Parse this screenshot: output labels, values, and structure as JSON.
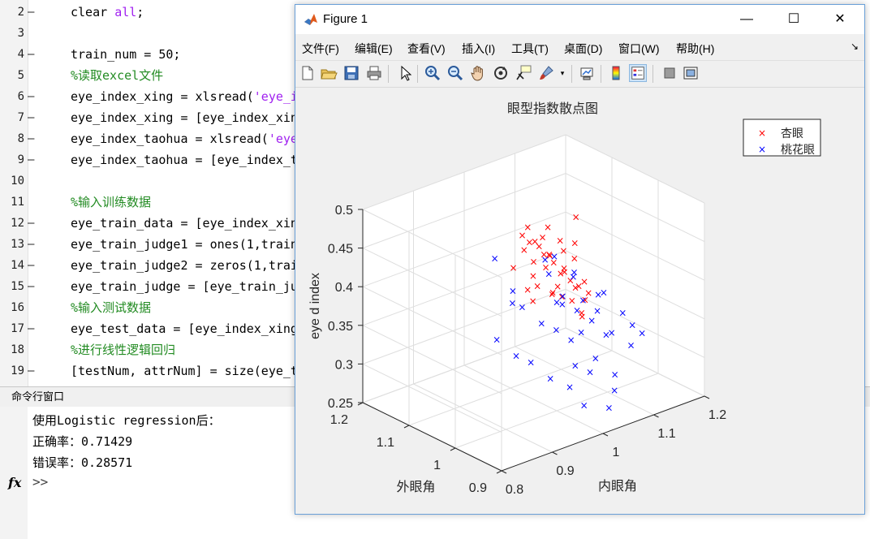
{
  "editor": {
    "lines": [
      {
        "num": "2",
        "dash": "—",
        "parts": [
          {
            "t": "clear ",
            "c": "kw"
          },
          {
            "t": "all",
            "c": "str"
          },
          {
            "t": ";",
            "c": "kw"
          }
        ]
      },
      {
        "num": "3",
        "dash": "",
        "parts": []
      },
      {
        "num": "4",
        "dash": "—",
        "parts": [
          {
            "t": "train_num = 50;",
            "c": "kw"
          }
        ]
      },
      {
        "num": "5",
        "dash": "",
        "parts": [
          {
            "t": "%读取excel文件",
            "c": "cm"
          }
        ]
      },
      {
        "num": "6",
        "dash": "—",
        "parts": [
          {
            "t": "eye_index_xing = xlsread(",
            "c": "kw"
          },
          {
            "t": "'eye_i",
            "c": "str"
          }
        ]
      },
      {
        "num": "7",
        "dash": "—",
        "parts": [
          {
            "t": "eye_index_xing = [eye_index_xin",
            "c": "kw"
          }
        ]
      },
      {
        "num": "8",
        "dash": "—",
        "parts": [
          {
            "t": "eye_index_taohua = xlsread(",
            "c": "kw"
          },
          {
            "t": "'eye",
            "c": "str"
          }
        ]
      },
      {
        "num": "9",
        "dash": "—",
        "parts": [
          {
            "t": "eye_index_taohua = [eye_index_t",
            "c": "kw"
          }
        ]
      },
      {
        "num": "10",
        "dash": "",
        "parts": []
      },
      {
        "num": "11",
        "dash": "",
        "parts": [
          {
            "t": "%输入训练数据",
            "c": "cm"
          }
        ]
      },
      {
        "num": "12",
        "dash": "—",
        "parts": [
          {
            "t": "eye_train_data = [eye_index_xin",
            "c": "kw"
          }
        ]
      },
      {
        "num": "13",
        "dash": "—",
        "parts": [
          {
            "t": "eye_train_judge1 = ones(1,train",
            "c": "kw"
          }
        ]
      },
      {
        "num": "14",
        "dash": "—",
        "parts": [
          {
            "t": "eye_train_judge2 = zeros(1,trai",
            "c": "kw"
          }
        ]
      },
      {
        "num": "15",
        "dash": "—",
        "parts": [
          {
            "t": "eye_train_judge = [eye_train_ju",
            "c": "kw"
          }
        ]
      },
      {
        "num": "16",
        "dash": "",
        "parts": [
          {
            "t": "%输入测试数据",
            "c": "cm"
          }
        ]
      },
      {
        "num": "17",
        "dash": "—",
        "parts": [
          {
            "t": "eye_test_data = [eye_index_xing",
            "c": "kw"
          }
        ]
      },
      {
        "num": "18",
        "dash": "",
        "parts": [
          {
            "t": "%进行线性逻辑回归",
            "c": "cm"
          }
        ]
      },
      {
        "num": "19",
        "dash": "—",
        "parts": [
          {
            "t": "[testNum, attrNum] = size(eye_t",
            "c": "kw"
          }
        ]
      }
    ]
  },
  "command_window": {
    "header": "命令行窗口",
    "lines": [
      "使用Logistic regression后：",
      "正确率：0.71429",
      "错误率：0.28571"
    ],
    "fx": "fx",
    "prompt": ">>"
  },
  "figure": {
    "title": "Figure 1",
    "controls": {
      "minimize": "—",
      "maximize": "☐",
      "close": "✕"
    },
    "menu": [
      "文件(F)",
      "编辑(E)",
      "查看(V)",
      "插入(I)",
      "工具(T)",
      "桌面(D)",
      "窗口(W)",
      "帮助(H)"
    ],
    "dock_arrow": "↘",
    "toolbar_icons": [
      "new-figure-icon",
      "open-file-icon",
      "save-icon",
      "print-icon",
      "pointer-icon",
      "zoom-in-icon",
      "zoom-out-icon",
      "pan-hand-icon",
      "rotate-3d-icon",
      "data-cursor-icon",
      "brush-icon",
      "link-plot-icon",
      "colorbar-icon",
      "legend-icon",
      "hide-plot-tools-icon",
      "show-plot-tools-icon"
    ]
  },
  "chart_data": {
    "type": "scatter",
    "title": "眼型指数散点图",
    "xlabel": "内眼角",
    "ylabel": "外眼角",
    "zlabel": "eye d index",
    "xlim": [
      0.8,
      1.2
    ],
    "ylim": [
      0.9,
      1.2
    ],
    "zlim": [
      0.25,
      0.5
    ],
    "x_ticks": [
      "0.8",
      "0.9",
      "1",
      "1.1",
      "1.2"
    ],
    "y_ticks": [
      "0.9",
      "1",
      "1.1",
      "1.2"
    ],
    "z_ticks": [
      "0.25",
      "0.3",
      "0.35",
      "0.4",
      "0.45",
      "0.5"
    ],
    "grid": true,
    "legend_position": "top-right",
    "marker": "×",
    "series": [
      {
        "name": "杏眼",
        "color": "#ff0000",
        "points": [
          [
            1.005,
            1.08,
            0.452
          ],
          [
            1.01,
            1.07,
            0.445
          ],
          [
            1.02,
            1.06,
            0.44
          ],
          [
            1.03,
            1.08,
            0.438
          ],
          [
            1.0,
            1.05,
            0.428
          ],
          [
            1.04,
            1.06,
            0.425
          ],
          [
            1.015,
            1.04,
            0.42
          ],
          [
            1.05,
            1.07,
            0.418
          ],
          [
            1.025,
            1.09,
            0.455
          ],
          [
            0.99,
            1.04,
            0.415
          ],
          [
            1.035,
            1.03,
            0.41
          ],
          [
            1.06,
            1.05,
            0.405
          ],
          [
            1.045,
            1.08,
            0.44
          ],
          [
            1.02,
            1.02,
            0.4
          ],
          [
            1.0,
            1.01,
            0.398
          ],
          [
            1.07,
            1.06,
            0.395
          ],
          [
            1.055,
            1.02,
            0.39
          ],
          [
            1.03,
            1.0,
            0.385
          ],
          [
            1.08,
            1.04,
            0.38
          ],
          [
            1.065,
            1.01,
            0.375
          ],
          [
            0.98,
            1.02,
            0.41
          ],
          [
            0.97,
            1.03,
            0.405
          ],
          [
            1.01,
            1.0,
            0.395
          ],
          [
            1.04,
            0.99,
            0.37
          ],
          [
            1.09,
            1.03,
            0.372
          ],
          [
            1.1,
            1.05,
            0.378
          ],
          [
            0.96,
            1.05,
            0.43
          ],
          [
            1.12,
            1.09,
            0.445
          ],
          [
            1.05,
            1.04,
            0.433
          ],
          [
            1.025,
            1.055,
            0.43
          ],
          [
            1.06,
            1.085,
            0.448
          ],
          [
            1.035,
            1.045,
            0.42
          ],
          [
            0.995,
            1.065,
            0.44
          ],
          [
            1.045,
            1.02,
            0.402
          ],
          [
            1.075,
            1.075,
            0.43
          ],
          [
            1.015,
            1.025,
            0.392
          ],
          [
            1.085,
            1.055,
            0.41
          ],
          [
            0.985,
            1.035,
            0.385
          ],
          [
            1.095,
            1.065,
            0.425
          ],
          [
            1.05,
            1.0,
            0.36
          ]
        ]
      },
      {
        "name": "桃花眼",
        "color": "#0000ff",
        "points": [
          [
            0.96,
            1.09,
            0.43
          ],
          [
            1.03,
            1.05,
            0.405
          ],
          [
            1.05,
            1.08,
            0.41
          ],
          [
            1.06,
            1.03,
            0.4
          ],
          [
            1.0,
            1.0,
            0.39
          ],
          [
            1.02,
            1.01,
            0.38
          ],
          [
            1.04,
            1.0,
            0.37
          ],
          [
            1.07,
            1.02,
            0.37
          ],
          [
            1.08,
            1.0,
            0.36
          ],
          [
            1.06,
            0.99,
            0.355
          ],
          [
            1.03,
            0.98,
            0.35
          ],
          [
            1.01,
            0.98,
            0.345
          ],
          [
            0.99,
            0.99,
            0.36
          ],
          [
            0.97,
            1.0,
            0.37
          ],
          [
            0.95,
            1.02,
            0.39
          ],
          [
            0.94,
            1.03,
            0.395
          ],
          [
            1.1,
            1.02,
            0.37
          ],
          [
            1.12,
            1.03,
            0.365
          ],
          [
            1.13,
            1.0,
            0.345
          ],
          [
            1.14,
            0.99,
            0.33
          ],
          [
            1.09,
            0.98,
            0.335
          ],
          [
            1.04,
            0.96,
            0.32
          ],
          [
            1.02,
            0.95,
            0.31
          ],
          [
            1.0,
            0.96,
            0.32
          ],
          [
            0.98,
            0.95,
            0.3
          ],
          [
            0.96,
            0.97,
            0.31
          ],
          [
            0.94,
            0.99,
            0.33
          ],
          [
            0.92,
            1.0,
            0.34
          ],
          [
            0.9,
            1.02,
            0.36
          ],
          [
            1.11,
            0.96,
            0.32
          ],
          [
            1.06,
            0.94,
            0.3
          ],
          [
            1.05,
            0.93,
            0.285
          ],
          [
            1.03,
            0.92,
            0.27
          ],
          [
            0.99,
            0.93,
            0.28
          ],
          [
            1.15,
            0.98,
            0.32
          ],
          [
            1.07,
            0.97,
            0.34
          ],
          [
            1.03,
            1.02,
            0.385
          ],
          [
            1.05,
            1.06,
            0.42
          ],
          [
            1.08,
            1.05,
            0.395
          ],
          [
            0.95,
            1.04,
            0.405
          ]
        ]
      }
    ]
  }
}
